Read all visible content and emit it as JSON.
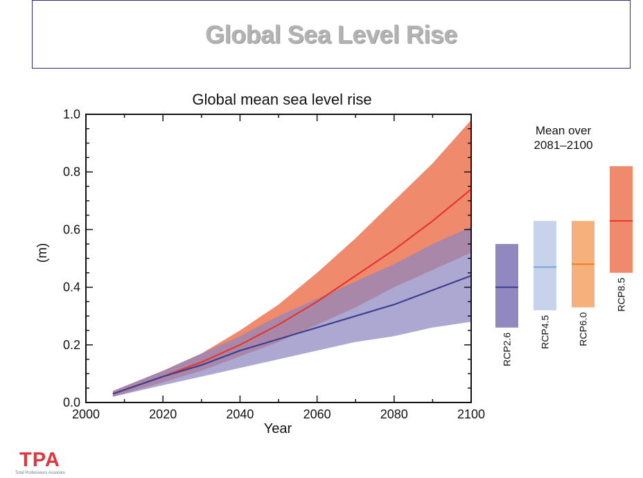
{
  "slide": {
    "title": "Global Sea Level Rise"
  },
  "logo": {
    "text": "TPA",
    "subtitle": "Total Professeurs Associés",
    "color": "#e2343a"
  },
  "chart_data": {
    "type": "area",
    "title": "Global mean sea level rise",
    "xlabel": "Year",
    "ylabel": "(m)",
    "xlim": [
      2000,
      2100
    ],
    "ylim": [
      0.0,
      1.0
    ],
    "x_ticks": [
      "2000",
      "2020",
      "2040",
      "2060",
      "2080",
      "2100"
    ],
    "y_ticks": [
      "0.0",
      "0.2",
      "0.4",
      "0.6",
      "0.8",
      "1.0"
    ],
    "grid": false,
    "series": [
      {
        "name": "RCP8.5",
        "color": "#e8342d",
        "band_color": "#f08a6c",
        "x": [
          2007,
          2020,
          2030,
          2040,
          2050,
          2060,
          2070,
          2080,
          2090,
          2100
        ],
        "mean": [
          0.03,
          0.09,
          0.14,
          0.2,
          0.27,
          0.35,
          0.44,
          0.53,
          0.63,
          0.74
        ],
        "lower": [
          0.02,
          0.07,
          0.11,
          0.16,
          0.21,
          0.27,
          0.33,
          0.4,
          0.46,
          0.52
        ],
        "upper": [
          0.04,
          0.11,
          0.17,
          0.25,
          0.34,
          0.45,
          0.57,
          0.7,
          0.83,
          0.98
        ]
      },
      {
        "name": "RCP2.6",
        "color": "#3e3e8f",
        "band_color": "#8c87c0",
        "x": [
          2007,
          2020,
          2030,
          2040,
          2050,
          2060,
          2070,
          2080,
          2090,
          2100
        ],
        "mean": [
          0.03,
          0.09,
          0.13,
          0.18,
          0.22,
          0.26,
          0.3,
          0.34,
          0.39,
          0.44
        ],
        "lower": [
          0.02,
          0.06,
          0.09,
          0.12,
          0.15,
          0.18,
          0.21,
          0.23,
          0.26,
          0.28
        ],
        "upper": [
          0.04,
          0.11,
          0.17,
          0.23,
          0.3,
          0.36,
          0.42,
          0.48,
          0.55,
          0.61
        ]
      }
    ],
    "inset": {
      "title_line1": "Mean over",
      "title_line2": "2081–2100",
      "ylim": [
        0.0,
        1.0
      ],
      "bars": [
        {
          "name": "RCP2.6",
          "low": 0.26,
          "high": 0.55,
          "mean": 0.4,
          "color": "#9088bf",
          "line": "#3e3e8f"
        },
        {
          "name": "RCP4.5",
          "low": 0.32,
          "high": 0.63,
          "mean": 0.47,
          "color": "#c7d3ea",
          "line": "#7ea0d8"
        },
        {
          "name": "RCP6.0",
          "low": 0.33,
          "high": 0.63,
          "mean": 0.48,
          "color": "#f6b07c",
          "line": "#f07d2d"
        },
        {
          "name": "RCP8.5",
          "low": 0.45,
          "high": 0.82,
          "mean": 0.63,
          "color": "#f08a6c",
          "line": "#e8342d"
        }
      ]
    }
  }
}
